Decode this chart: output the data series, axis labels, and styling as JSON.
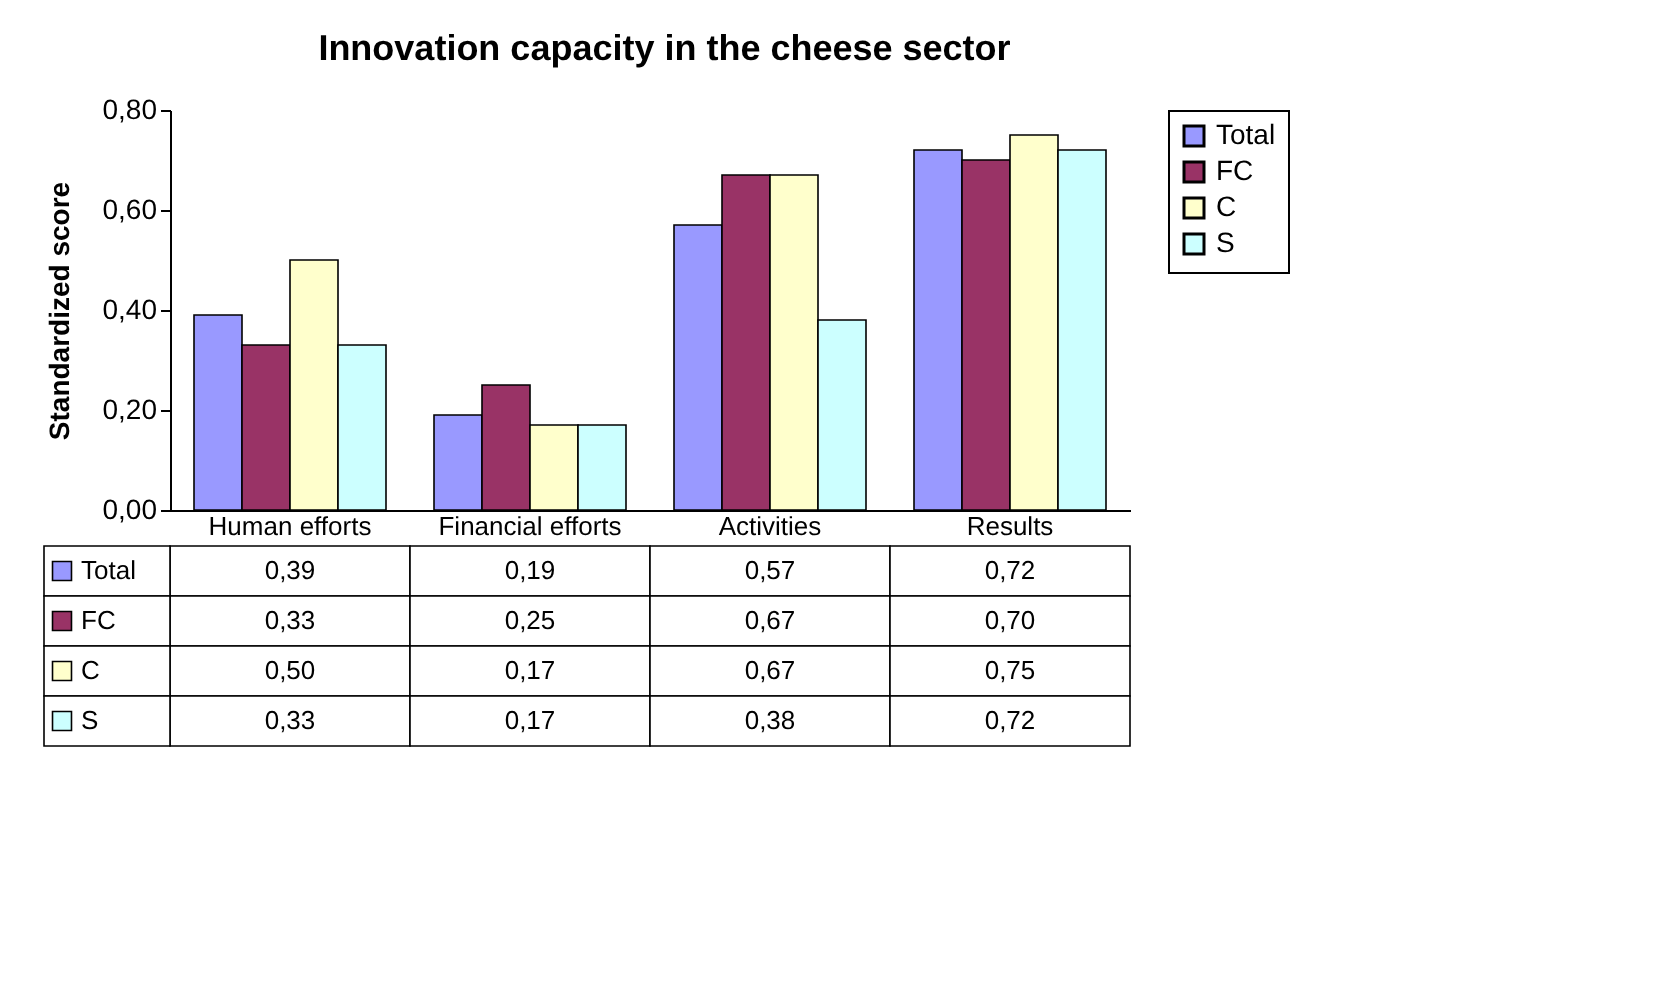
{
  "chart_data": {
    "type": "bar",
    "title": "Innovation capacity in the cheese sector",
    "ylabel": "Standardized score",
    "categories": [
      "Human efforts",
      "Financial efforts",
      "Activities",
      "Results"
    ],
    "series": [
      {
        "name": "Total",
        "color": "#9999ff",
        "values": [
          0.39,
          0.19,
          0.57,
          0.72
        ],
        "value_labels": [
          "0,39",
          "0,19",
          "0,57",
          "0,72"
        ]
      },
      {
        "name": "FC",
        "color": "#993366",
        "values": [
          0.33,
          0.25,
          0.67,
          0.7
        ],
        "value_labels": [
          "0,33",
          "0,25",
          "0,67",
          "0,70"
        ]
      },
      {
        "name": "C",
        "color": "#ffffcc",
        "values": [
          0.5,
          0.17,
          0.67,
          0.75
        ],
        "value_labels": [
          "0,50",
          "0,17",
          "0,67",
          "0,75"
        ]
      },
      {
        "name": "S",
        "color": "#ccffff",
        "values": [
          0.33,
          0.17,
          0.38,
          0.72
        ],
        "value_labels": [
          "0,33",
          "0,17",
          "0,38",
          "0,72"
        ]
      }
    ],
    "ylim": [
      0,
      0.8
    ],
    "yticks": [
      {
        "value": 0,
        "label": "0,00"
      },
      {
        "value": 0.2,
        "label": "0,20"
      },
      {
        "value": 0.4,
        "label": "0,40"
      },
      {
        "value": 0.6,
        "label": "0,60"
      },
      {
        "value": 0.8,
        "label": "0,80"
      }
    ],
    "grid": false,
    "legend": "right"
  }
}
